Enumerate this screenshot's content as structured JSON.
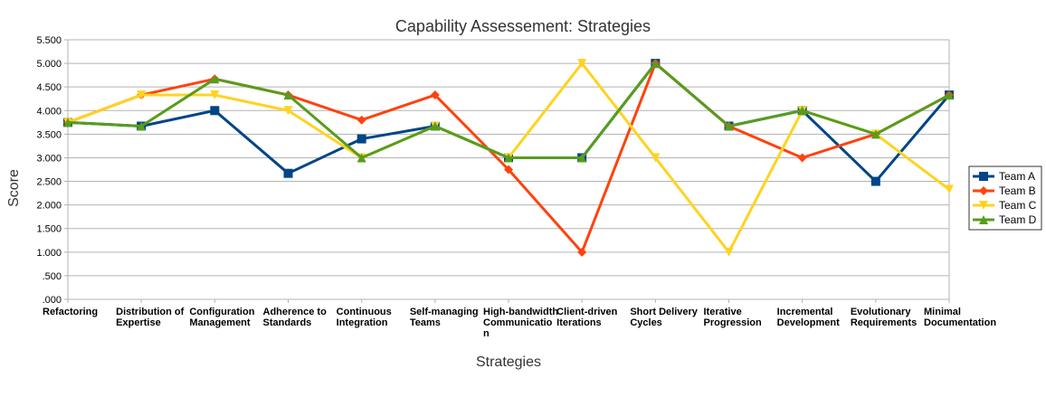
{
  "chart_data": {
    "type": "line",
    "title": "Capability Assessement: Strategies",
    "xlabel": "Strategies",
    "ylabel": "Score",
    "ylim": [
      0,
      5.5
    ],
    "y_ticks": [
      ".000",
      ".500",
      "1.000",
      "1.500",
      "2.000",
      "2.500",
      "3.000",
      "3.500",
      "4.000",
      "4.500",
      "5.000",
      "5.500"
    ],
    "grid": true,
    "legend_position": "right",
    "categories": [
      [
        "Refactoring"
      ],
      [
        "Distribution of",
        "Expertise"
      ],
      [
        "Configuration",
        "Management"
      ],
      [
        "Adherence to",
        "Standards"
      ],
      [
        "Continuous",
        "Integration"
      ],
      [
        "Self-managing",
        "Teams"
      ],
      [
        "High-bandwidth",
        "Communicatio",
        "n"
      ],
      [
        "Client-driven",
        "Iterations"
      ],
      [
        "Short Delivery",
        "Cycles"
      ],
      [
        "Iterative",
        "Progression"
      ],
      [
        "Incremental",
        "Development"
      ],
      [
        "Evolutionary",
        "Requirements"
      ],
      [
        "Minimal",
        "Documentation"
      ]
    ],
    "series": [
      {
        "name": "Team A",
        "color": "#004586",
        "marker": "square",
        "values": [
          3.75,
          3.67,
          4.0,
          2.67,
          3.4,
          3.67,
          3.0,
          3.0,
          5.0,
          3.67,
          4.0,
          2.5,
          4.33
        ]
      },
      {
        "name": "Team B",
        "color": "#ff420e",
        "marker": "diamond",
        "values": [
          3.75,
          4.33,
          4.67,
          4.33,
          3.8,
          4.33,
          2.75,
          1.0,
          5.0,
          3.67,
          3.0,
          3.5,
          4.33
        ]
      },
      {
        "name": "Team C",
        "color": "#ffd320",
        "marker": "triangle-down",
        "values": [
          3.75,
          4.33,
          4.33,
          4.0,
          3.0,
          3.67,
          3.0,
          5.0,
          3.0,
          1.0,
          4.0,
          3.5,
          2.33
        ]
      },
      {
        "name": "Team D",
        "color": "#579d1c",
        "marker": "triangle-up",
        "values": [
          3.75,
          3.67,
          4.67,
          4.33,
          3.0,
          3.67,
          3.0,
          3.0,
          5.0,
          3.67,
          4.0,
          3.5,
          4.33
        ]
      }
    ]
  }
}
